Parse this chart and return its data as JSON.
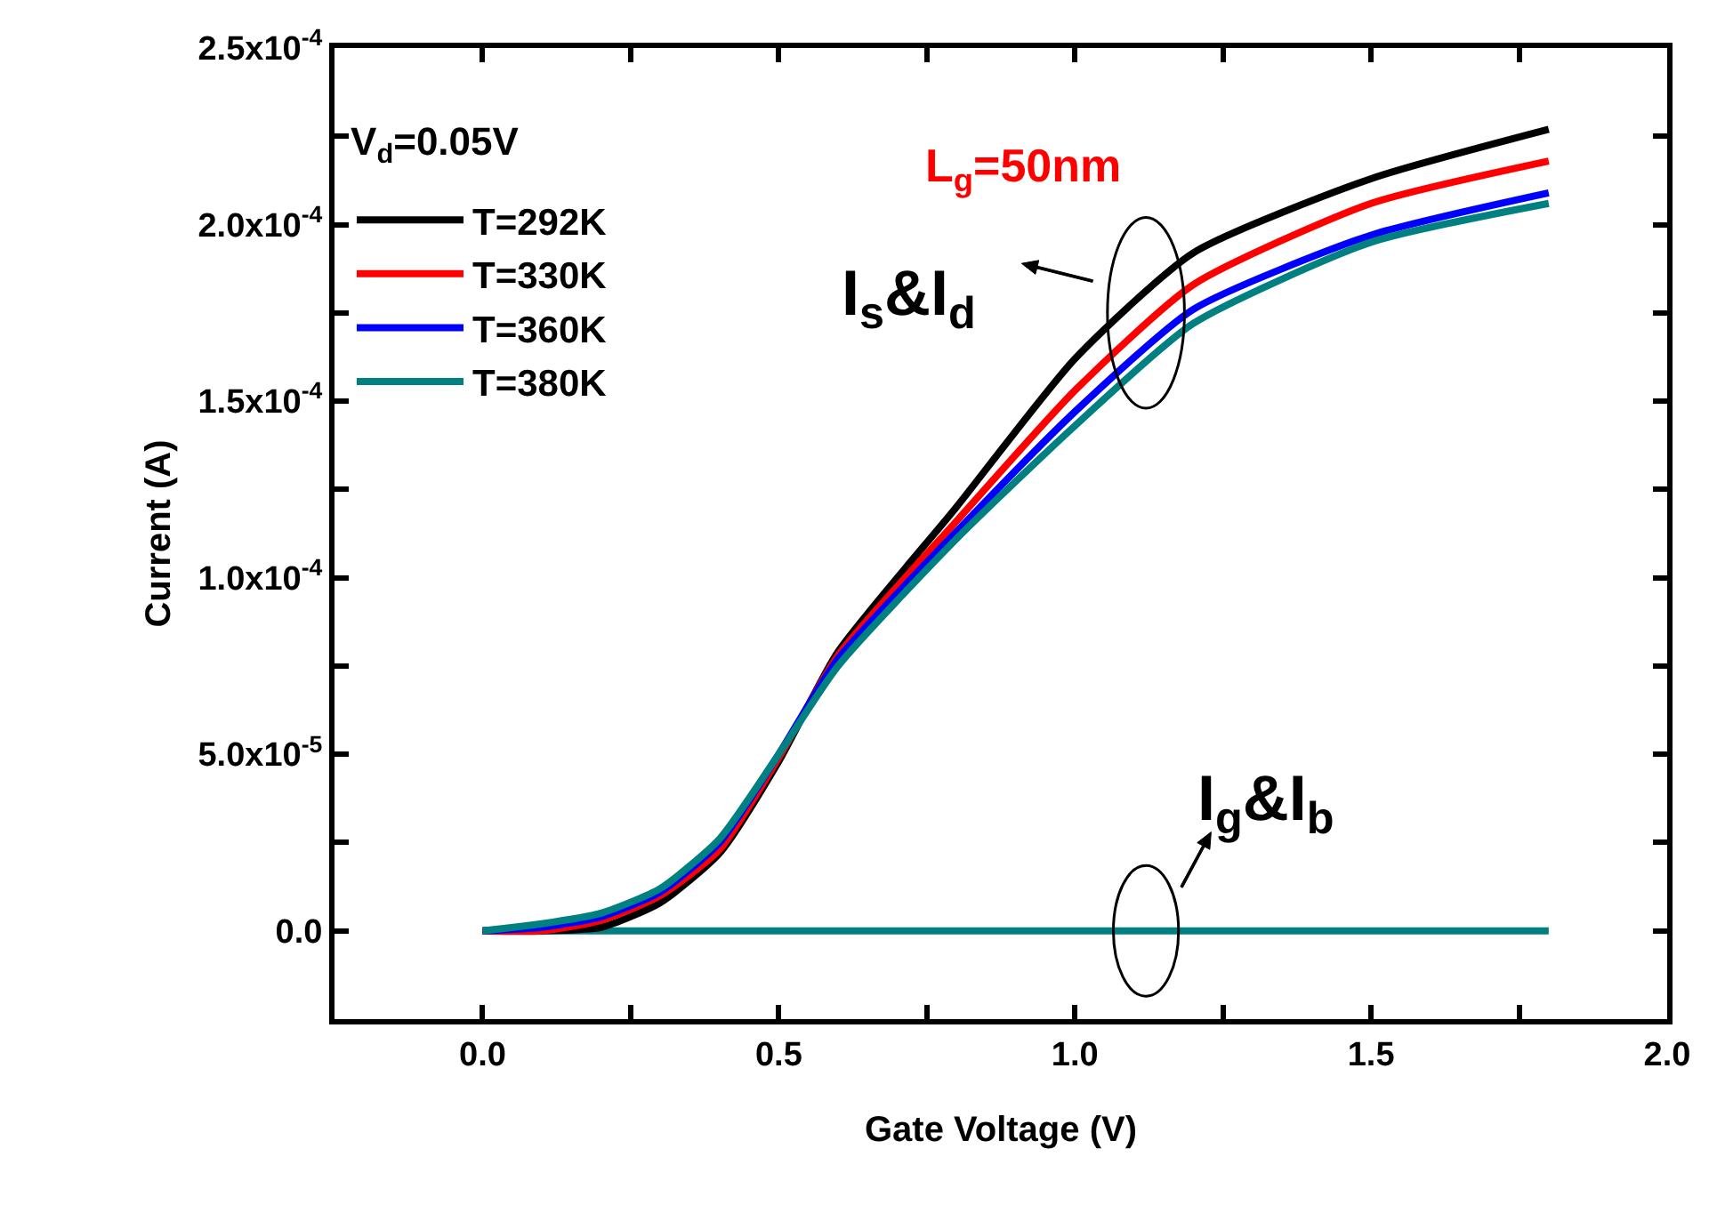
{
  "chart_data": {
    "type": "line",
    "xlabel": "Gate Voltage (V)",
    "ylabel": "Current (A)",
    "xlim": [
      -0.25,
      2.0
    ],
    "ylim": [
      -2.5e-05,
      0.00025
    ],
    "xticks": [
      {
        "value": -0.25,
        "label": null
      },
      {
        "value": 0.0,
        "label": "0.0"
      },
      {
        "value": 0.25,
        "label": null
      },
      {
        "value": 0.5,
        "label": "0.5"
      },
      {
        "value": 0.75,
        "label": null
      },
      {
        "value": 1.0,
        "label": "1.0"
      },
      {
        "value": 1.25,
        "label": null
      },
      {
        "value": 1.5,
        "label": "1.5"
      },
      {
        "value": 1.75,
        "label": null
      },
      {
        "value": 2.0,
        "label": "2.0"
      }
    ],
    "yticks": [
      {
        "value": 0,
        "label": "0.0"
      },
      {
        "value": 2.5e-05,
        "label": null
      },
      {
        "value": 5e-05,
        "label": "5.0x10$^{-5}$"
      },
      {
        "value": 7.5e-05,
        "label": null
      },
      {
        "value": 0.0001,
        "label": "1.0x10$^{-4}$"
      },
      {
        "value": 0.000125,
        "label": null
      },
      {
        "value": 0.00015,
        "label": "1.5x10$^{-4}$"
      },
      {
        "value": 0.000175,
        "label": null
      },
      {
        "value": 0.0002,
        "label": "2.0x10$^{-4}$"
      },
      {
        "value": 0.000225,
        "label": null
      },
      {
        "value": 0.00025,
        "label": "2.5x10$^{-4}$"
      }
    ],
    "x": [
      0,
      0.1,
      0.2,
      0.3,
      0.4,
      0.5,
      0.6,
      0.8,
      1.0,
      1.2,
      1.5,
      1.8
    ],
    "series": [
      {
        "name": null,
        "color": "#008080",
        "values": [
          0,
          0,
          0,
          0,
          0,
          0,
          0,
          0,
          0,
          0,
          0,
          0
        ]
      },
      {
        "name": "T=292K",
        "color": "#000000",
        "values": [
          0,
          0,
          1e-06,
          8e-06,
          2.2e-05,
          4.8e-05,
          7.9e-05,
          0.00012,
          0.000162,
          0.000192,
          0.000213,
          0.000227
        ]
      },
      {
        "name": "T=330K",
        "color": "#ff0000",
        "values": [
          0,
          0,
          3e-06,
          1e-05,
          2.3e-05,
          4.9e-05,
          7.8e-05,
          0.000116,
          0.000153,
          0.000183,
          0.000206,
          0.000218
        ]
      },
      {
        "name": "T=360K",
        "color": "#0000ff",
        "values": [
          0,
          1e-06,
          4e-06,
          1.1e-05,
          2.5e-05,
          5e-05,
          7.7e-05,
          0.000113,
          0.000147,
          0.000176,
          0.000197,
          0.000209
        ]
      },
      {
        "name": "T=380K",
        "color": "#008080",
        "values": [
          0,
          2e-06,
          5e-06,
          1.2e-05,
          2.6e-05,
          5e-05,
          7.5e-05,
          0.000111,
          0.000143,
          0.000172,
          0.000195,
          0.000206
        ]
      }
    ],
    "legend": "top left",
    "marker": "none",
    "line_style": "solid",
    "annotations": [
      "V$_{d}$=0.05V",
      "L$_{g}$=50nm",
      {
        "text": "I$_{s}$&I$_{d}$",
        "x": 1.12,
        "y": 0.000175
      },
      {
        "text": "I$_{g}$&I$_{b}$",
        "x": 1.12,
        "y": 0
      }
    ]
  }
}
